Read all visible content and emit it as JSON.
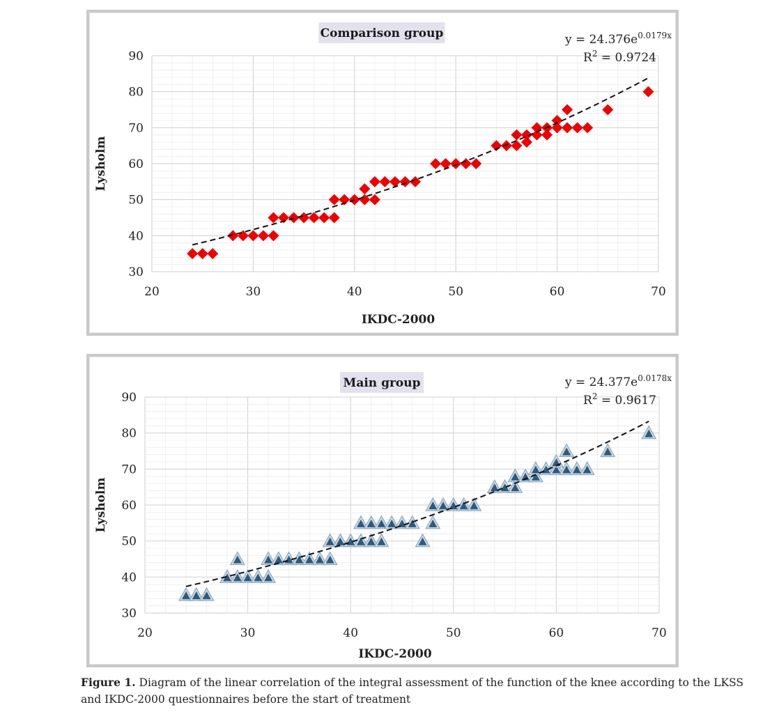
{
  "chart_data": [
    {
      "type": "scatter",
      "title": "Comparison group",
      "xlabel": "IKDC-2000",
      "ylabel": "Lysholm",
      "xlim": [
        20,
        70
      ],
      "ylim": [
        30,
        90
      ],
      "x_ticks": [
        "20",
        "30",
        "40",
        "50",
        "60",
        "70"
      ],
      "y_ticks": [
        "30",
        "40",
        "50",
        "60",
        "70",
        "80",
        "90"
      ],
      "grid": true,
      "marker": "diamond",
      "marker_color": "#ee0000",
      "equation": "y = 24.376e",
      "equation_exp": "0.0179x",
      "r2_label": "R",
      "r2_value": " = 0.9724",
      "trend": {
        "a": 24.376,
        "b": 0.0179,
        "x_from": 24,
        "x_to": 69
      },
      "points": [
        [
          24,
          35
        ],
        [
          25,
          35
        ],
        [
          26,
          35
        ],
        [
          28,
          40
        ],
        [
          29,
          40
        ],
        [
          30,
          40
        ],
        [
          31,
          40
        ],
        [
          32,
          40
        ],
        [
          32,
          45
        ],
        [
          33,
          45
        ],
        [
          34,
          45
        ],
        [
          35,
          45
        ],
        [
          36,
          45
        ],
        [
          37,
          45
        ],
        [
          38,
          45
        ],
        [
          38,
          50
        ],
        [
          39,
          50
        ],
        [
          40,
          50
        ],
        [
          41,
          50
        ],
        [
          42,
          50
        ],
        [
          41,
          53
        ],
        [
          42,
          55
        ],
        [
          43,
          55
        ],
        [
          44,
          55
        ],
        [
          45,
          55
        ],
        [
          46,
          55
        ],
        [
          48,
          60
        ],
        [
          49,
          60
        ],
        [
          50,
          60
        ],
        [
          51,
          60
        ],
        [
          52,
          60
        ],
        [
          54,
          65
        ],
        [
          55,
          65
        ],
        [
          56,
          65
        ],
        [
          56,
          68
        ],
        [
          57,
          66
        ],
        [
          57,
          68
        ],
        [
          58,
          68
        ],
        [
          58,
          70
        ],
        [
          59,
          68
        ],
        [
          59,
          70
        ],
        [
          60,
          70
        ],
        [
          60,
          72
        ],
        [
          61,
          70
        ],
        [
          62,
          70
        ],
        [
          63,
          70
        ],
        [
          61,
          75
        ],
        [
          65,
          75
        ],
        [
          69,
          80
        ]
      ]
    },
    {
      "type": "scatter",
      "title": "Main group",
      "xlabel": "IKDC-2000",
      "ylabel": "Lysholm",
      "xlim": [
        20,
        70
      ],
      "ylim": [
        30,
        90
      ],
      "x_ticks": [
        "20",
        "30",
        "40",
        "50",
        "60",
        "70"
      ],
      "y_ticks": [
        "30",
        "40",
        "50",
        "60",
        "70",
        "80",
        "90"
      ],
      "grid": true,
      "marker": "triangle",
      "marker_color": "#2e5a7a",
      "equation": "y = 24.377e",
      "equation_exp": "0.0178x",
      "r2_label": "R",
      "r2_value": " = 0.9617",
      "trend": {
        "a": 24.377,
        "b": 0.0178,
        "x_from": 24,
        "x_to": 69
      },
      "points": [
        [
          24,
          35
        ],
        [
          25,
          35
        ],
        [
          26,
          35
        ],
        [
          28,
          40
        ],
        [
          29,
          40
        ],
        [
          30,
          40
        ],
        [
          31,
          40
        ],
        [
          32,
          40
        ],
        [
          29,
          45
        ],
        [
          32,
          45
        ],
        [
          33,
          45
        ],
        [
          34,
          45
        ],
        [
          35,
          45
        ],
        [
          36,
          45
        ],
        [
          37,
          45
        ],
        [
          38,
          45
        ],
        [
          38,
          50
        ],
        [
          39,
          50
        ],
        [
          40,
          50
        ],
        [
          41,
          50
        ],
        [
          42,
          50
        ],
        [
          43,
          50
        ],
        [
          47,
          50
        ],
        [
          41,
          55
        ],
        [
          42,
          55
        ],
        [
          43,
          55
        ],
        [
          44,
          55
        ],
        [
          45,
          55
        ],
        [
          46,
          55
        ],
        [
          48,
          55
        ],
        [
          48,
          60
        ],
        [
          49,
          60
        ],
        [
          50,
          60
        ],
        [
          51,
          60
        ],
        [
          52,
          60
        ],
        [
          54,
          65
        ],
        [
          55,
          65
        ],
        [
          56,
          65
        ],
        [
          56,
          68
        ],
        [
          57,
          68
        ],
        [
          58,
          68
        ],
        [
          58,
          70
        ],
        [
          59,
          70
        ],
        [
          60,
          70
        ],
        [
          60,
          72
        ],
        [
          61,
          70
        ],
        [
          62,
          70
        ],
        [
          63,
          70
        ],
        [
          61,
          75
        ],
        [
          65,
          75
        ],
        [
          69,
          80
        ]
      ]
    }
  ],
  "caption": {
    "label": "Figure 1.",
    "text": " Diagram of the linear correlation of the integral assessment of the function of the knee according to the LKSS and IKDC-2000 questionnaires before the start of treatment"
  }
}
